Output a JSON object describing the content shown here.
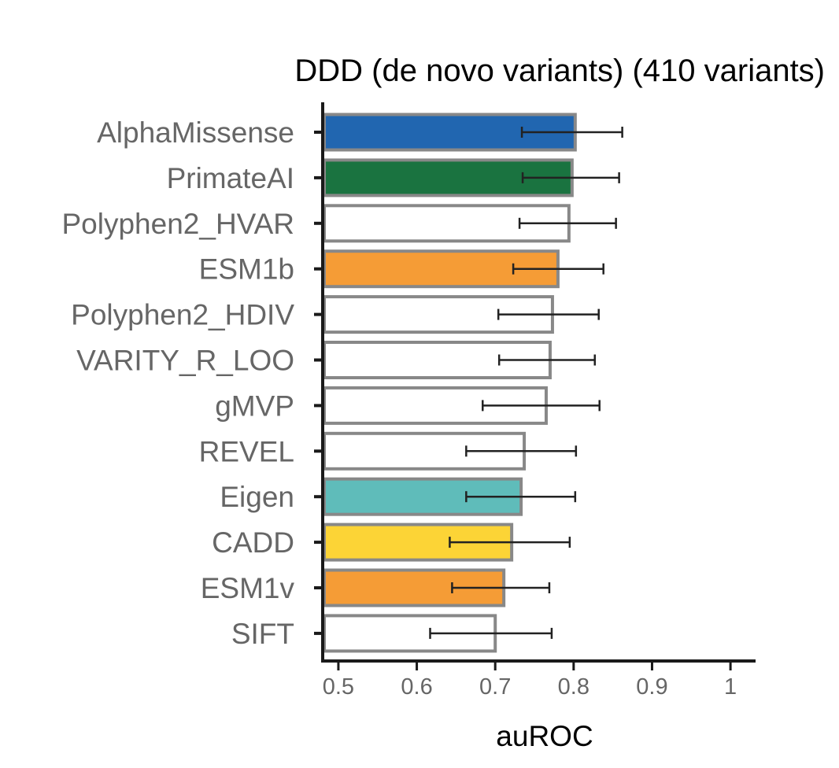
{
  "chart_data": {
    "type": "bar",
    "orientation": "horizontal",
    "title": "DDD (de novo variants) (410 variants)",
    "xlabel": "auROC",
    "ylabel": "",
    "xlim": [
      0.48,
      1.03
    ],
    "xticks": [
      0.5,
      0.6,
      0.7,
      0.8,
      0.9,
      1
    ],
    "xtick_labels": [
      "0.5",
      "0.6",
      "0.7",
      "0.8",
      "0.9",
      "1"
    ],
    "grid": false,
    "categories": [
      "AlphaMissense",
      "PrimateAI",
      "Polyphen2_HVAR",
      "ESM1b",
      "Polyphen2_HDIV",
      "VARITY_R_LOO",
      "gMVP",
      "REVEL",
      "Eigen",
      "CADD",
      "ESM1v",
      "SIFT"
    ],
    "values": [
      0.802,
      0.798,
      0.794,
      0.78,
      0.773,
      0.77,
      0.765,
      0.737,
      0.733,
      0.721,
      0.711,
      0.7
    ],
    "error_low": [
      0.734,
      0.735,
      0.731,
      0.723,
      0.704,
      0.705,
      0.684,
      0.663,
      0.663,
      0.642,
      0.645,
      0.617
    ],
    "error_high": [
      0.862,
      0.858,
      0.854,
      0.838,
      0.832,
      0.827,
      0.833,
      0.803,
      0.802,
      0.795,
      0.769,
      0.772
    ],
    "colors": [
      "#2166b0",
      "#1a7340",
      "#ffffff",
      "#f59c36",
      "#ffffff",
      "#ffffff",
      "#ffffff",
      "#ffffff",
      "#5fbcba",
      "#fcd436",
      "#f59c36",
      "#ffffff"
    ],
    "bar_edge_color": "#888888",
    "error_bar_color": "#222222",
    "axis_color": "#1a1a1a"
  }
}
